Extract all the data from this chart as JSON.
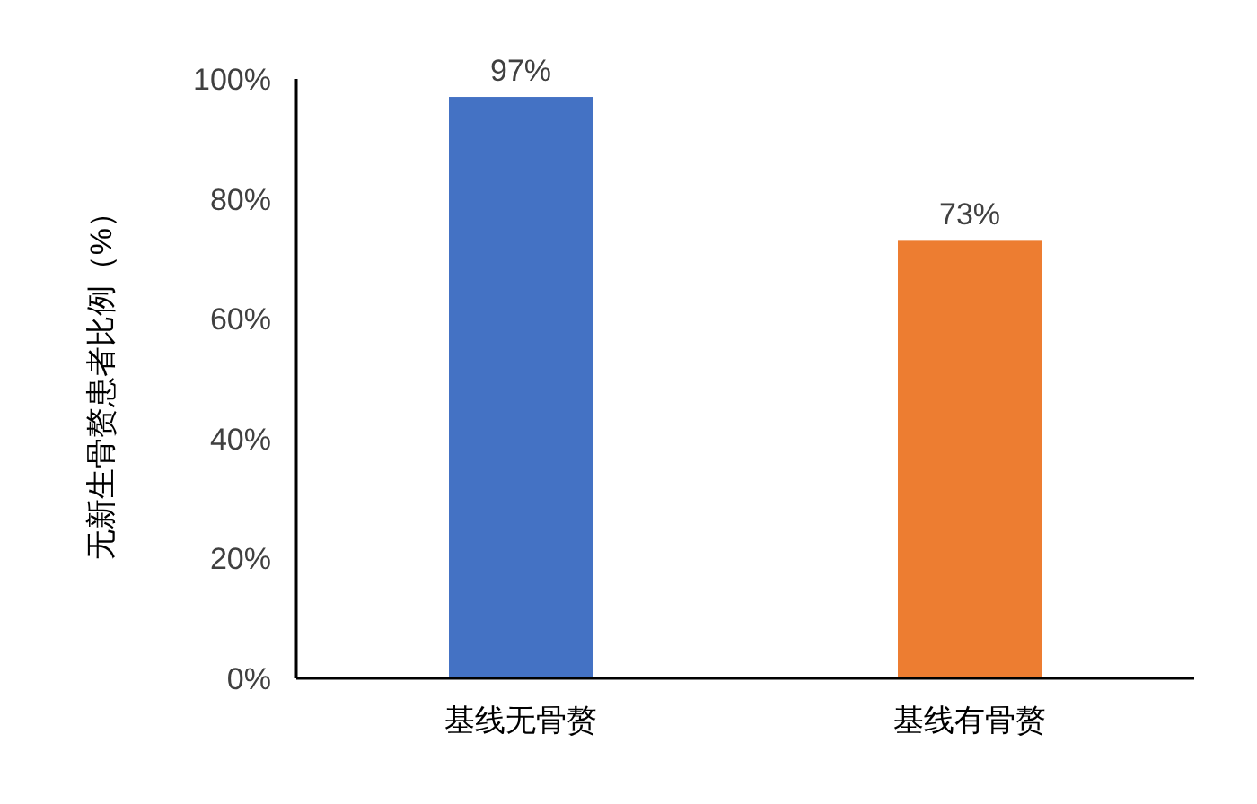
{
  "chart_data": {
    "type": "bar",
    "ylabel": "无新生骨赘患者比例（%）",
    "categories": [
      "基线无骨赘",
      "基线有骨赘"
    ],
    "values": [
      97,
      73
    ],
    "colors": [
      "#4472c4",
      "#ed7d31"
    ],
    "value_labels": [
      "97%",
      "73%"
    ],
    "ylim": [
      0,
      100
    ],
    "yticks": [
      {
        "value": 0,
        "label": "0%"
      },
      {
        "value": 20,
        "label": "20%"
      },
      {
        "value": 40,
        "label": "40%"
      },
      {
        "value": 60,
        "label": "60%"
      },
      {
        "value": 80,
        "label": "80%"
      },
      {
        "value": 100,
        "label": "100%"
      }
    ],
    "grid": false
  }
}
